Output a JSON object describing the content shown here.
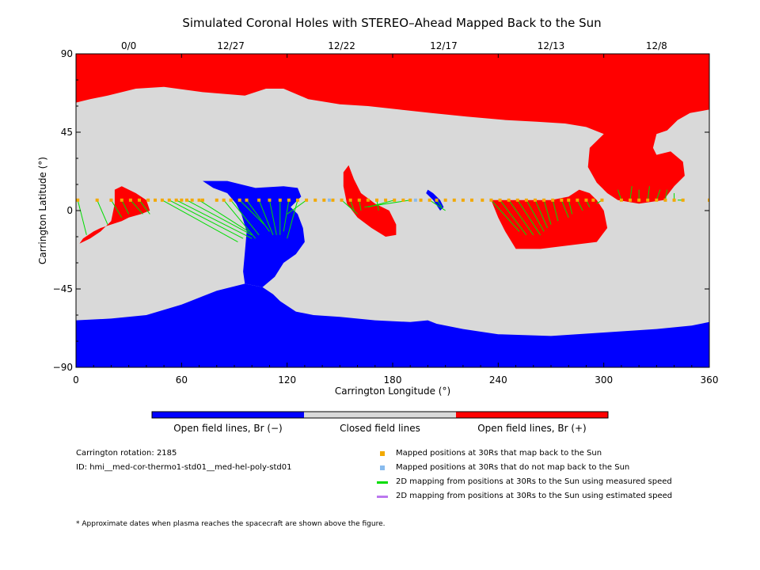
{
  "chart_data": {
    "type": "map",
    "title": "Simulated Coronal Holes with STEREO–Ahead Mapped Back to the Sun",
    "xlabel": "Carrington Longitude (°)",
    "ylabel": "Carrington Latitude (°)",
    "xlim": [
      0,
      360
    ],
    "ylim": [
      -90,
      90
    ],
    "x_ticks": [
      "0",
      "60",
      "120",
      "180",
      "240",
      "300",
      "360"
    ],
    "y_ticks": [
      "90",
      "45",
      "0",
      "−45",
      "−90"
    ],
    "top_date_ticks": [
      {
        "lon": 30,
        "label": "0/0"
      },
      {
        "lon": 88,
        "label": "12/27"
      },
      {
        "lon": 151,
        "label": "12/22"
      },
      {
        "lon": 209,
        "label": "12/17"
      },
      {
        "lon": 270,
        "label": "12/13"
      },
      {
        "lon": 330,
        "label": "12/8"
      }
    ],
    "colors": {
      "positive": "#ff0000",
      "negative": "#0000ff",
      "closed": "#d9d9d9",
      "mapped": "#f2a900",
      "unmapped": "#88bbee",
      "measured": "#00dd00",
      "estimated": "#bb77ee"
    },
    "regions": [
      {
        "name": "north-polar-positive",
        "polarity": "positive",
        "points": [
          [
            0,
            90
          ],
          [
            360,
            90
          ],
          [
            360,
            58
          ],
          [
            349,
            56
          ],
          [
            342,
            52
          ],
          [
            336,
            46
          ],
          [
            330,
            44
          ],
          [
            328,
            36
          ],
          [
            330,
            32
          ],
          [
            338,
            34
          ],
          [
            345,
            28
          ],
          [
            346,
            20
          ],
          [
            340,
            14
          ],
          [
            334,
            6
          ],
          [
            320,
            4
          ],
          [
            308,
            6
          ],
          [
            302,
            10
          ],
          [
            296,
            16
          ],
          [
            291,
            25
          ],
          [
            292,
            36
          ],
          [
            300,
            44
          ],
          [
            290,
            48
          ],
          [
            278,
            50
          ],
          [
            262,
            51
          ],
          [
            244,
            52
          ],
          [
            222,
            54
          ],
          [
            202,
            56
          ],
          [
            184,
            58
          ],
          [
            166,
            60
          ],
          [
            150,
            61
          ],
          [
            132,
            64
          ],
          [
            118,
            70
          ],
          [
            108,
            70
          ],
          [
            96,
            66
          ],
          [
            72,
            68
          ],
          [
            50,
            71
          ],
          [
            34,
            70
          ],
          [
            18,
            66
          ],
          [
            8,
            64
          ],
          [
            0,
            62
          ]
        ]
      },
      {
        "name": "south-polar-negative",
        "polarity": "negative",
        "points": [
          [
            0,
            -90
          ],
          [
            360,
            -90
          ],
          [
            360,
            -64
          ],
          [
            350,
            -66
          ],
          [
            330,
            -68
          ],
          [
            300,
            -70
          ],
          [
            270,
            -72
          ],
          [
            240,
            -71
          ],
          [
            220,
            -68
          ],
          [
            205,
            -65
          ],
          [
            200,
            -63
          ],
          [
            190,
            -64
          ],
          [
            170,
            -63
          ],
          [
            150,
            -61
          ],
          [
            135,
            -60
          ],
          [
            125,
            -58
          ],
          [
            116,
            -52
          ],
          [
            112,
            -48
          ],
          [
            106,
            -44
          ],
          [
            96,
            -42
          ],
          [
            80,
            -46
          ],
          [
            60,
            -54
          ],
          [
            40,
            -60
          ],
          [
            20,
            -62
          ],
          [
            0,
            -63
          ]
        ]
      },
      {
        "name": "mid-negative-lobe",
        "polarity": "negative",
        "points": [
          [
            72,
            17
          ],
          [
            86,
            17
          ],
          [
            102,
            13
          ],
          [
            118,
            14
          ],
          [
            126,
            13
          ],
          [
            128,
            8
          ],
          [
            122,
            2
          ],
          [
            126,
            -2
          ],
          [
            129,
            -10
          ],
          [
            130,
            -18
          ],
          [
            125,
            -25
          ],
          [
            118,
            -30
          ],
          [
            113,
            -38
          ],
          [
            106,
            -44
          ],
          [
            96,
            -42
          ],
          [
            95,
            -35
          ],
          [
            96,
            -24
          ],
          [
            97,
            -12
          ],
          [
            94,
            -2
          ],
          [
            91,
            4
          ],
          [
            86,
            10
          ],
          [
            78,
            13
          ]
        ]
      },
      {
        "name": "mid-positive-lobe-1",
        "polarity": "positive",
        "points": [
          [
            2,
            -19
          ],
          [
            8,
            -16
          ],
          [
            14,
            -12
          ],
          [
            20,
            -6
          ],
          [
            22,
            4
          ],
          [
            22,
            12
          ],
          [
            26,
            14
          ],
          [
            34,
            10
          ],
          [
            40,
            6
          ],
          [
            42,
            0
          ],
          [
            37,
            -2
          ],
          [
            30,
            -4
          ],
          [
            26,
            -6
          ],
          [
            20,
            -8
          ],
          [
            14,
            -10
          ],
          [
            10,
            -12
          ],
          [
            4,
            -16
          ]
        ]
      },
      {
        "name": "mid-positive-lobe-2",
        "polarity": "positive",
        "points": [
          [
            155,
            26
          ],
          [
            158,
            18
          ],
          [
            162,
            10
          ],
          [
            170,
            4
          ],
          [
            178,
            0
          ],
          [
            182,
            -8
          ],
          [
            182,
            -14
          ],
          [
            176,
            -15
          ],
          [
            168,
            -10
          ],
          [
            160,
            -4
          ],
          [
            154,
            4
          ],
          [
            152,
            14
          ],
          [
            152,
            22
          ]
        ]
      },
      {
        "name": "mid-positive-lobe-3",
        "polarity": "positive",
        "points": [
          [
            236,
            6
          ],
          [
            240,
            -4
          ],
          [
            244,
            -12
          ],
          [
            250,
            -22
          ],
          [
            264,
            -22
          ],
          [
            280,
            -20
          ],
          [
            296,
            -18
          ],
          [
            302,
            -10
          ],
          [
            300,
            0
          ],
          [
            296,
            6
          ],
          [
            292,
            10
          ],
          [
            286,
            12
          ],
          [
            280,
            8
          ],
          [
            270,
            6
          ],
          [
            254,
            6
          ]
        ]
      },
      {
        "name": "small-negative-sliver",
        "polarity": "negative",
        "points": [
          [
            200,
            12
          ],
          [
            203,
            10
          ],
          [
            207,
            6
          ],
          [
            209,
            2
          ],
          [
            207,
            0
          ],
          [
            203,
            6
          ],
          [
            199,
            10
          ]
        ]
      }
    ],
    "mapped_points": [
      [
        1,
        6
      ],
      [
        12,
        6
      ],
      [
        20,
        6
      ],
      [
        26,
        6
      ],
      [
        31,
        6
      ],
      [
        36,
        6
      ],
      [
        41,
        6
      ],
      [
        45,
        6
      ],
      [
        49,
        6
      ],
      [
        53,
        6
      ],
      [
        57,
        6
      ],
      [
        60,
        6
      ],
      [
        63,
        6
      ],
      [
        66,
        6
      ],
      [
        70,
        6
      ],
      [
        72,
        6
      ],
      [
        80,
        6
      ],
      [
        84,
        6
      ],
      [
        88,
        6
      ],
      [
        93,
        6
      ],
      [
        97,
        6
      ],
      [
        104,
        6
      ],
      [
        110,
        6
      ],
      [
        116,
        6
      ],
      [
        121,
        6
      ],
      [
        126,
        6
      ],
      [
        131,
        6
      ],
      [
        136,
        6
      ],
      [
        141,
        6
      ],
      [
        146,
        6
      ],
      [
        151,
        6
      ],
      [
        156,
        6
      ],
      [
        161,
        6
      ],
      [
        166,
        6
      ],
      [
        171,
        6
      ],
      [
        176,
        6
      ],
      [
        181,
        6
      ],
      [
        186,
        6
      ],
      [
        190,
        6
      ],
      [
        196,
        6
      ],
      [
        201,
        6
      ],
      [
        205,
        6
      ],
      [
        210,
        6
      ],
      [
        215,
        6
      ],
      [
        220,
        6
      ],
      [
        225,
        6
      ],
      [
        231,
        6
      ],
      [
        236,
        6
      ],
      [
        241,
        6
      ],
      [
        246,
        6
      ],
      [
        251,
        6
      ],
      [
        256,
        6
      ],
      [
        261,
        6
      ],
      [
        266,
        6
      ],
      [
        271,
        6
      ],
      [
        276,
        6
      ],
      [
        280,
        6
      ],
      [
        285,
        6
      ],
      [
        290,
        6
      ],
      [
        294,
        6
      ],
      [
        299,
        6
      ],
      [
        310,
        6
      ],
      [
        315,
        6
      ],
      [
        320,
        6
      ],
      [
        325,
        6
      ],
      [
        330,
        6
      ],
      [
        335,
        6
      ],
      [
        340,
        6
      ],
      [
        345,
        6
      ],
      [
        360,
        6
      ]
    ],
    "unmapped_points": [
      [
        144,
        6
      ],
      [
        193,
        6
      ]
    ],
    "measured_mappings": [
      [
        [
          1,
          6
        ],
        [
          6,
          -14
        ]
      ],
      [
        [
          12,
          6
        ],
        [
          18,
          -8
        ]
      ],
      [
        [
          20,
          6
        ],
        [
          26,
          -4
        ]
      ],
      [
        [
          26,
          6
        ],
        [
          30,
          -2
        ]
      ],
      [
        [
          31,
          6
        ],
        [
          38,
          -2
        ]
      ],
      [
        [
          36,
          6
        ],
        [
          42,
          -2
        ]
      ],
      [
        [
          49,
          6
        ],
        [
          92,
          -18
        ]
      ],
      [
        [
          53,
          6
        ],
        [
          95,
          -16
        ]
      ],
      [
        [
          57,
          6
        ],
        [
          100,
          -16
        ]
      ],
      [
        [
          63,
          6
        ],
        [
          100,
          -14
        ]
      ],
      [
        [
          70,
          6
        ],
        [
          98,
          -12
        ]
      ],
      [
        [
          84,
          6
        ],
        [
          102,
          -16
        ]
      ],
      [
        [
          88,
          6
        ],
        [
          104,
          -14
        ]
      ],
      [
        [
          93,
          6
        ],
        [
          107,
          -8
        ]
      ],
      [
        [
          97,
          6
        ],
        [
          110,
          -12
        ]
      ],
      [
        [
          104,
          6
        ],
        [
          112,
          -14
        ]
      ],
      [
        [
          110,
          6
        ],
        [
          114,
          -14
        ]
      ],
      [
        [
          116,
          6
        ],
        [
          116,
          -14
        ]
      ],
      [
        [
          121,
          6
        ],
        [
          118,
          -12
        ]
      ],
      [
        [
          126,
          6
        ],
        [
          120,
          -16
        ]
      ],
      [
        [
          131,
          6
        ],
        [
          120,
          -2
        ]
      ],
      [
        [
          151,
          6
        ],
        [
          160,
          -2
        ]
      ],
      [
        [
          156,
          6
        ],
        [
          158,
          0
        ]
      ],
      [
        [
          161,
          6
        ],
        [
          162,
          0
        ]
      ],
      [
        [
          171,
          6
        ],
        [
          172,
          0
        ]
      ],
      [
        [
          181,
          6
        ],
        [
          166,
          2
        ]
      ],
      [
        [
          190,
          6
        ],
        [
          164,
          2
        ]
      ],
      [
        [
          201,
          6
        ],
        [
          210,
          0
        ]
      ],
      [
        [
          205,
          6
        ],
        [
          208,
          2
        ]
      ],
      [
        [
          236,
          6
        ],
        [
          252,
          -12
        ]
      ],
      [
        [
          241,
          6
        ],
        [
          256,
          -14
        ]
      ],
      [
        [
          246,
          6
        ],
        [
          260,
          -14
        ]
      ],
      [
        [
          251,
          6
        ],
        [
          264,
          -14
        ]
      ],
      [
        [
          256,
          6
        ],
        [
          266,
          -12
        ]
      ],
      [
        [
          261,
          6
        ],
        [
          268,
          -10
        ]
      ],
      [
        [
          266,
          6
        ],
        [
          270,
          -8
        ]
      ],
      [
        [
          271,
          6
        ],
        [
          274,
          -6
        ]
      ],
      [
        [
          276,
          6
        ],
        [
          280,
          -4
        ]
      ],
      [
        [
          280,
          6
        ],
        [
          282,
          -2
        ]
      ],
      [
        [
          285,
          6
        ],
        [
          288,
          0
        ]
      ],
      [
        [
          290,
          6
        ],
        [
          292,
          2
        ]
      ],
      [
        [
          299,
          6
        ],
        [
          296,
          4
        ]
      ],
      [
        [
          310,
          6
        ],
        [
          308,
          12
        ]
      ],
      [
        [
          315,
          6
        ],
        [
          316,
          14
        ]
      ],
      [
        [
          320,
          6
        ],
        [
          320,
          12
        ]
      ],
      [
        [
          325,
          6
        ],
        [
          326,
          14
        ]
      ],
      [
        [
          330,
          6
        ],
        [
          332,
          12
        ]
      ],
      [
        [
          335,
          6
        ],
        [
          336,
          12
        ]
      ],
      [
        [
          340,
          6
        ],
        [
          340,
          10
        ]
      ],
      [
        [
          345,
          6
        ],
        [
          342,
          6
        ]
      ]
    ],
    "colorbar": {
      "labels": [
        "Open field lines, Br (−)",
        "Closed field lines",
        "Open field lines, Br (+)"
      ]
    },
    "legend": [
      {
        "kind": "square",
        "color_key": "mapped",
        "label": "Mapped positions at 30Rs that map back to the Sun"
      },
      {
        "kind": "square",
        "color_key": "unmapped",
        "label": "Mapped positions at 30Rs that do not map back to the Sun"
      },
      {
        "kind": "line",
        "color_key": "measured",
        "label": "2D mapping from positions at 30Rs to the Sun using measured speed"
      },
      {
        "kind": "line",
        "color_key": "estimated",
        "label": "2D mapping from positions at 30Rs to the Sun using estimated speed"
      }
    ]
  },
  "info": {
    "rotation": "Carrington rotation: 2185",
    "id": "ID: hmi__med-cor-thermo1-std01__med-hel-poly-std01"
  },
  "footnote": "* Approximate dates when plasma reaches the spacecraft are shown above the figure."
}
